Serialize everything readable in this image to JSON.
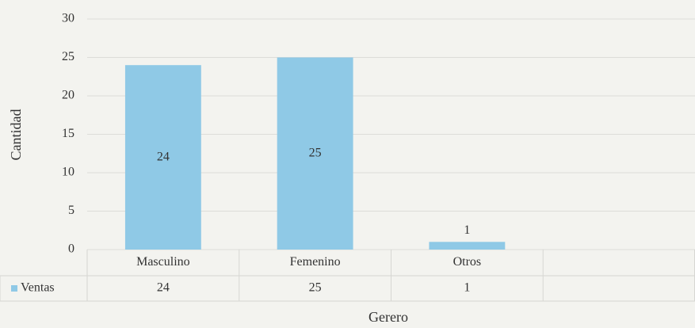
{
  "chart_data": {
    "type": "bar",
    "categories": [
      "Masculino",
      "Femenino",
      "Otros",
      null
    ],
    "series": [
      {
        "name": "Ventas",
        "color": "#8fc9e6",
        "values": [
          24,
          25,
          1,
          null
        ]
      }
    ],
    "x_label": "Gerero",
    "y_label": "Cantidad",
    "ylim": [
      0,
      30
    ],
    "yticks": [
      0,
      5,
      10,
      15,
      20,
      25,
      30
    ],
    "grid": true,
    "data_table": true
  }
}
